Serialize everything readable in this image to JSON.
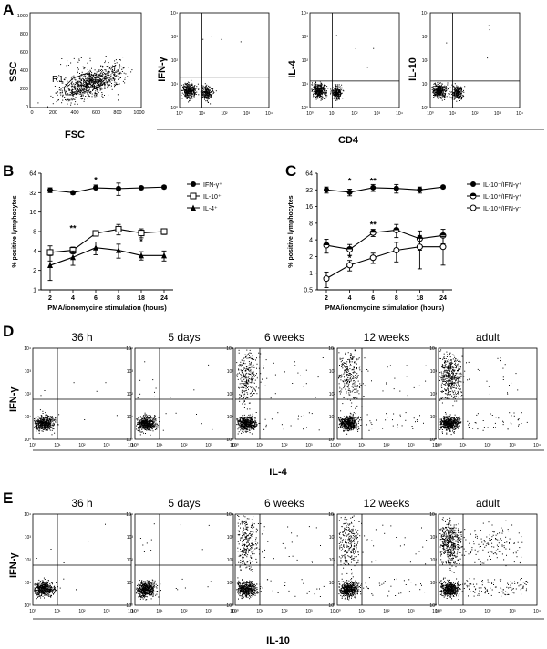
{
  "panels": {
    "a": "A",
    "b": "B",
    "c": "C",
    "d": "D",
    "e": "E"
  },
  "panel_a": {
    "scatter_ylabel": "SSC",
    "scatter_xlabel": "FSC",
    "gate_label": "R1",
    "lin_ticks": [
      "0",
      "200",
      "400",
      "600",
      "800",
      "1000"
    ],
    "log_ticks": [
      "10⁰",
      "10¹",
      "10²",
      "10³",
      "10⁴"
    ],
    "plots": [
      {
        "ylabel": "IFN-γ"
      },
      {
        "ylabel": "IL-4"
      },
      {
        "ylabel": "IL-10"
      }
    ],
    "shared_xlabel": "CD4"
  },
  "panel_d": {
    "ylabel": "IFN-γ",
    "xlabel": "IL-4",
    "timepoints": [
      "36 h",
      "5 days",
      "6 weeks",
      "12 weeks",
      "adult"
    ]
  },
  "panel_e": {
    "ylabel": "IFN-γ",
    "xlabel": "IL-10",
    "timepoints": [
      "36 h",
      "5 days",
      "6 weeks",
      "12 weeks",
      "adult"
    ]
  },
  "chart_data": [
    {
      "type": "line",
      "panel": "B",
      "xlabel": "PMA/ionomycine stimulation (hours)",
      "ylabel": "% positive lymphocytes",
      "y_scale": "log2",
      "ylim": [
        1,
        64
      ],
      "y_ticks": [
        "64",
        "32",
        "16",
        "8",
        "4",
        "2",
        "1"
      ],
      "x": [
        2,
        4,
        6,
        8,
        18,
        24
      ],
      "x_tick_labels": [
        "2",
        "4",
        "6",
        "8",
        "18",
        "24"
      ],
      "series": [
        {
          "name": "IFN-γ⁺",
          "marker": "filled-circle",
          "values": [
            35,
            32,
            38,
            37,
            38,
            39
          ],
          "err": [
            3,
            2,
            4,
            8,
            2,
            2
          ]
        },
        {
          "name": "IL-10⁺",
          "marker": "open-square",
          "values": [
            3.8,
            4.1,
            7.5,
            8.7,
            7.6,
            8.0
          ],
          "err": [
            1.0,
            0.5,
            0.6,
            1.6,
            1.2,
            0.8
          ]
        },
        {
          "name": "IL-4⁺",
          "marker": "filled-triangle",
          "values": [
            2.4,
            3.2,
            4.5,
            4.1,
            3.4,
            3.4
          ],
          "err": [
            1.0,
            0.8,
            1.0,
            1.0,
            0.5,
            0.6
          ]
        }
      ],
      "annotations": [
        {
          "x": 6,
          "y": 50,
          "text": "*"
        },
        {
          "x": 4,
          "y": 9,
          "text": "**"
        },
        {
          "x": 18,
          "y": 5.6,
          "text": "*"
        }
      ]
    },
    {
      "type": "line",
      "panel": "C",
      "xlabel": "PMA/ionomycine stimulation (hours)",
      "ylabel": "% positive lymphocytes",
      "y_scale": "log2",
      "ylim": [
        0.5,
        64
      ],
      "y_ticks": [
        "64",
        "32",
        "16",
        "8",
        "4",
        "2",
        "1",
        "0.5"
      ],
      "x": [
        2,
        4,
        6,
        8,
        18,
        24
      ],
      "x_tick_labels": [
        "2",
        "4",
        "6",
        "8",
        "18",
        "24"
      ],
      "series": [
        {
          "name": "IL-10⁻/IFN-γ⁺",
          "marker": "filled-circle",
          "values": [
            32,
            29,
            35,
            34,
            32,
            36
          ],
          "err": [
            4,
            4,
            5,
            6,
            4,
            2
          ]
        },
        {
          "name": "IL-10⁺/IFN-γ⁺",
          "marker": "half-circle",
          "values": [
            3.2,
            2.7,
            5.4,
            6.0,
            4.2,
            4.8
          ],
          "err": [
            0.9,
            0.6,
            0.8,
            1.6,
            1.6,
            1.4
          ]
        },
        {
          "name": "IL-10⁺/IFN-γ⁻",
          "marker": "open-circle",
          "values": [
            0.8,
            1.4,
            1.9,
            2.6,
            3.0,
            3.0
          ],
          "err": [
            0.25,
            0.3,
            0.4,
            1.0,
            1.8,
            1.6
          ]
        }
      ],
      "annotations": [
        {
          "x": 4,
          "y": 46,
          "text": "*"
        },
        {
          "x": 6,
          "y": 46,
          "text": "**"
        },
        {
          "x": 6,
          "y": 7.5,
          "text": "**"
        },
        {
          "x": 4,
          "y": 1.9,
          "text": "*"
        }
      ]
    }
  ]
}
